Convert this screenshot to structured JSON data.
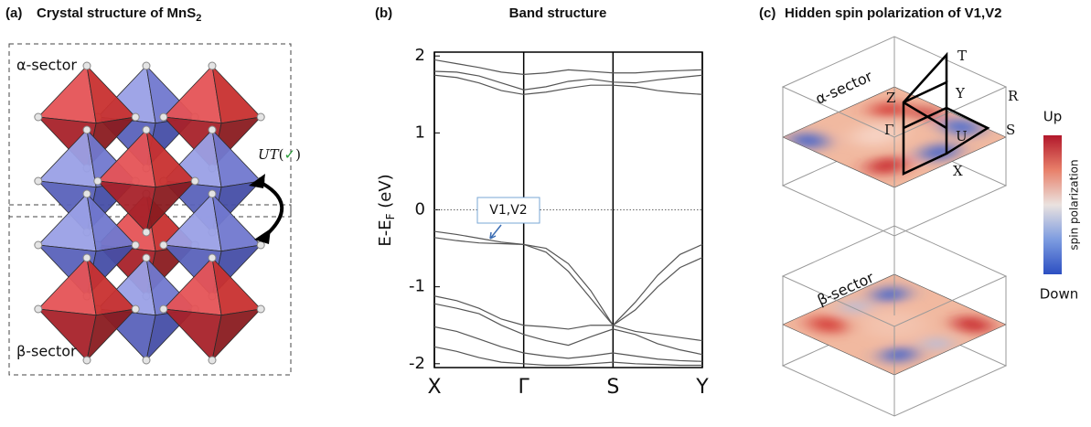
{
  "panel_a": {
    "label": "(a)",
    "title": "Crystal structure of MnS",
    "title_sub": "2",
    "alpha_sector": "α-sector",
    "beta_sector": "β-sector",
    "operation": [
      "UT",
      "(",
      "✓",
      ")"
    ]
  },
  "chart_data": {
    "type": "line",
    "label": "(b)",
    "title": "Band structure",
    "ylabel": [
      "E-E",
      "F",
      " (eV)"
    ],
    "x": [
      0,
      0.25,
      0.5,
      0.75,
      1,
      1.25,
      1.5,
      1.75,
      2,
      2.25,
      2.5,
      2.75,
      3
    ],
    "xlim": [
      0,
      3
    ],
    "xticks": [
      {
        "value": 0,
        "label": "X"
      },
      {
        "value": 1,
        "label": "Γ"
      },
      {
        "value": 2,
        "label": "S"
      },
      {
        "value": 3,
        "label": "Y"
      }
    ],
    "ylim": [
      -2.05,
      2.05
    ],
    "yticks": [
      2,
      1,
      0,
      -1,
      -2
    ],
    "hlines": [
      0
    ],
    "xgrid": true,
    "color": "#555555",
    "annotation": "V1,V2",
    "series": [
      {
        "values": [
          -0.28,
          -0.32,
          -0.37,
          -0.42,
          -0.45,
          -0.55,
          -0.8,
          -1.15,
          -1.5,
          -1.2,
          -0.85,
          -0.58,
          -0.45
        ]
      },
      {
        "values": [
          -0.36,
          -0.4,
          -0.43,
          -0.44,
          -0.45,
          -0.5,
          -0.7,
          -1.05,
          -1.5,
          -1.3,
          -1.0,
          -0.75,
          -0.62
        ]
      },
      {
        "values": [
          -1.12,
          -1.18,
          -1.28,
          -1.42,
          -1.5,
          -1.52,
          -1.55,
          -1.5,
          -1.5,
          -1.58,
          -1.62,
          -1.66,
          -1.7
        ]
      },
      {
        "values": [
          -1.22,
          -1.28,
          -1.35,
          -1.5,
          -1.62,
          -1.7,
          -1.76,
          -1.65,
          -1.55,
          -1.62,
          -1.74,
          -1.82,
          -1.88
        ]
      },
      {
        "values": [
          -1.52,
          -1.58,
          -1.68,
          -1.78,
          -1.86,
          -1.9,
          -1.93,
          -1.9,
          -1.86,
          -1.9,
          -1.94,
          -1.96,
          -1.97
        ]
      },
      {
        "values": [
          -1.78,
          -1.84,
          -1.92,
          -1.98,
          -2.0,
          -2.02,
          -2.02,
          -2.0,
          -1.98,
          -2.0,
          -2.01,
          -2.02,
          -2.02
        ]
      },
      {
        "values": [
          1.75,
          1.72,
          1.65,
          1.55,
          1.5,
          1.53,
          1.58,
          1.62,
          1.62,
          1.6,
          1.55,
          1.52,
          1.5
        ]
      },
      {
        "values": [
          1.8,
          1.79,
          1.74,
          1.65,
          1.56,
          1.6,
          1.67,
          1.7,
          1.66,
          1.65,
          1.69,
          1.72,
          1.75
        ]
      },
      {
        "values": [
          1.95,
          1.9,
          1.85,
          1.79,
          1.76,
          1.78,
          1.82,
          1.8,
          1.78,
          1.78,
          1.8,
          1.81,
          1.82
        ]
      }
    ]
  },
  "panel_c": {
    "label": "(c)",
    "title": "Hidden spin polarization of V1,V2",
    "alpha_sector": "α-sector",
    "beta_sector": "β-sector",
    "k_points": [
      "T",
      "Y",
      "R",
      "Z",
      "Γ",
      "S",
      "U",
      "X"
    ],
    "colorbar_top": "Up",
    "colorbar_bottom": "Down",
    "colorbar_label": "spin polarization"
  }
}
